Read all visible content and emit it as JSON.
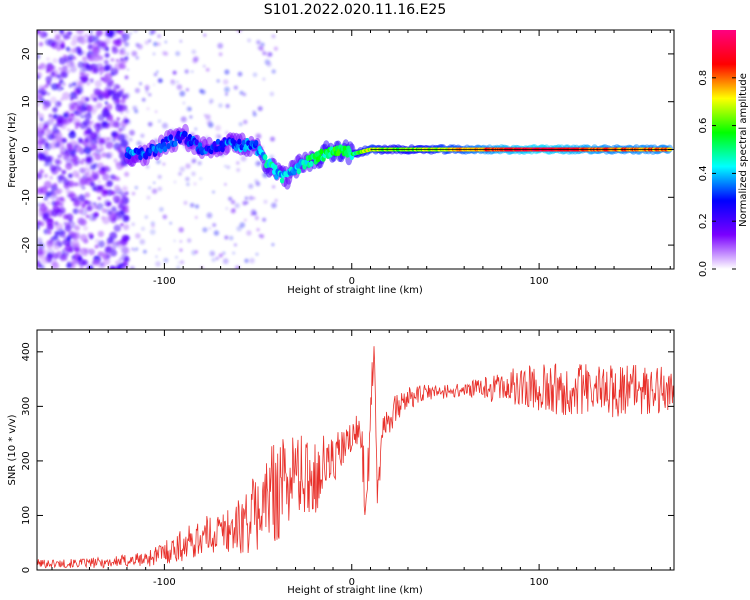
{
  "figure": {
    "title": "S101.2022.020.11.16.E25"
  },
  "chart_data": [
    {
      "type": "heatmap",
      "xlabel": "Height of straight line (km)",
      "ylabel": "Frequency (Hz)",
      "xlim": [
        -168,
        172
      ],
      "ylim": [
        -25,
        25
      ],
      "xticks": [
        -100,
        0,
        100
      ],
      "yticks": [
        -20,
        -10,
        0,
        10,
        20
      ],
      "grid": false,
      "colorbar": {
        "label": "Normalized spectral amplitude",
        "range": [
          0,
          1
        ],
        "ticks": [
          0.0,
          0.2,
          0.4,
          0.6,
          0.8
        ],
        "tick_labels": [
          "0.0",
          "0.2",
          "0.4",
          "0.6",
          "0.8"
        ],
        "colors": [
          "#ffffff",
          "#7a00ff",
          "#0000ff",
          "#00ffff",
          "#00ff00",
          "#ffff00",
          "#ff0000",
          "#ff0080"
        ]
      },
      "ridge": {
        "x": [
          -120,
          -110,
          -100,
          -90,
          -80,
          -70,
          -60,
          -52,
          -45,
          -40,
          -35,
          -30,
          -25,
          -20,
          -15,
          -10,
          -5,
          0,
          10,
          20,
          40,
          60,
          80,
          100,
          120,
          140,
          160,
          170
        ],
        "frequency": [
          -1,
          -1,
          1,
          3,
          0,
          1,
          1,
          1,
          -3,
          -5,
          -6,
          -4,
          -3,
          -2,
          -1,
          0,
          0,
          -1,
          0,
          0,
          0,
          0,
          0,
          0,
          0,
          0,
          0,
          0
        ],
        "amplitude": [
          0.35,
          0.3,
          0.3,
          0.3,
          0.3,
          0.3,
          0.35,
          0.35,
          0.45,
          0.4,
          0.4,
          0.4,
          0.45,
          0.5,
          0.5,
          0.55,
          0.55,
          0.5,
          0.7,
          0.6,
          0.65,
          0.75,
          0.85,
          0.9,
          0.85,
          0.8,
          0.8,
          0.8
        ]
      },
      "noise_region": {
        "x": [
          -168,
          -120
        ],
        "frequency": [
          -25,
          25
        ],
        "amplitude": 0.25
      }
    },
    {
      "type": "line",
      "xlabel": "Height of straight line (km)",
      "ylabel": "SNR (10 * v/v)",
      "xlim": [
        -168,
        172
      ],
      "ylim": [
        0,
        440
      ],
      "xticks": [
        -100,
        0,
        100
      ],
      "yticks": [
        0,
        100,
        200,
        300,
        400
      ],
      "grid": false,
      "color": "#e8302a",
      "series": [
        {
          "x": [
            -168,
            -150,
            -130,
            -110,
            -90,
            -80,
            -70,
            -60,
            -50,
            -45,
            -40,
            -35,
            -30,
            -25,
            -20,
            -15,
            -10,
            -5,
            0,
            5,
            8,
            10,
            12,
            14,
            16,
            20,
            25,
            30,
            40,
            60,
            80,
            100,
            120,
            140,
            160,
            172
          ],
          "y": [
            12,
            12,
            14,
            20,
            45,
            60,
            70,
            80,
            110,
            130,
            150,
            165,
            180,
            170,
            170,
            190,
            200,
            220,
            240,
            260,
            90,
            300,
            420,
            120,
            270,
            280,
            300,
            315,
            325,
            330,
            335,
            335,
            330,
            330,
            330,
            330
          ],
          "spread": [
            8,
            8,
            10,
            15,
            30,
            35,
            40,
            50,
            80,
            90,
            100,
            90,
            80,
            70,
            70,
            60,
            50,
            40,
            30,
            40,
            60,
            50,
            30,
            60,
            40,
            30,
            25,
            20,
            15,
            12,
            30,
            45,
            50,
            50,
            45,
            40
          ]
        }
      ]
    }
  ]
}
